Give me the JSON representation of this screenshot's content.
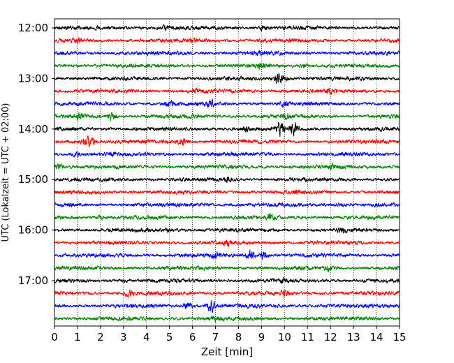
{
  "chart_data": {
    "type": "line",
    "title": "",
    "xlabel": "Zeit  [min]",
    "ylabel": "UTC (Lokalzeit = UTC + 02:00)",
    "xlim": [
      0,
      15
    ],
    "x_ticks": [
      "0",
      "1",
      "2",
      "3",
      "4",
      "5",
      "6",
      "7",
      "8",
      "9",
      "10",
      "11",
      "12",
      "13",
      "14",
      "15"
    ],
    "y_ticks": [
      "12:00",
      "13:00",
      "14:00",
      "15:00",
      "16:00",
      "17:00"
    ],
    "grid": "vertical dotted",
    "trace_colors": [
      "#000000",
      "#ff0000",
      "#0000ff",
      "#008000"
    ],
    "traces": [
      {
        "start": "12:00",
        "events": [
          {
            "x": 4.8,
            "amp": 1.2
          },
          {
            "x": 9.1,
            "amp": 1.0
          }
        ]
      },
      {
        "start": "12:15",
        "events": [
          {
            "x": 1.0,
            "amp": 0.8
          },
          {
            "x": 6.0,
            "amp": 0.8
          }
        ]
      },
      {
        "start": "12:30",
        "events": [
          {
            "x": 8.8,
            "amp": 0.8
          }
        ]
      },
      {
        "start": "12:45",
        "events": [
          {
            "x": 9.0,
            "amp": 1.4
          },
          {
            "x": 10.8,
            "amp": 0.8
          }
        ]
      },
      {
        "start": "13:00",
        "events": [
          {
            "x": 9.7,
            "amp": 2.2
          },
          {
            "x": 10.0,
            "amp": 1.5
          }
        ]
      },
      {
        "start": "13:15",
        "events": [
          {
            "x": 6.2,
            "amp": 0.9
          },
          {
            "x": 12.0,
            "amp": 0.8
          }
        ]
      },
      {
        "start": "13:30",
        "events": [
          {
            "x": 5.0,
            "amp": 1.2
          },
          {
            "x": 6.8,
            "amp": 1.4
          },
          {
            "x": 10.0,
            "amp": 1.1
          }
        ]
      },
      {
        "start": "13:45",
        "events": [
          {
            "x": 1.1,
            "amp": 1.3
          },
          {
            "x": 2.5,
            "amp": 2.0
          },
          {
            "x": 10.0,
            "amp": 1.2
          }
        ]
      },
      {
        "start": "14:00",
        "events": [
          {
            "x": 8.3,
            "amp": 1.2
          },
          {
            "x": 9.8,
            "amp": 3.4
          },
          {
            "x": 10.4,
            "amp": 2.8
          }
        ]
      },
      {
        "start": "14:15",
        "events": [
          {
            "x": 1.3,
            "amp": 2.4
          },
          {
            "x": 1.6,
            "amp": 2.2
          },
          {
            "x": 5.6,
            "amp": 2.0
          }
        ]
      },
      {
        "start": "14:30",
        "events": [
          {
            "x": 0.9,
            "amp": 1.2
          },
          {
            "x": 2.5,
            "amp": 1.0
          }
        ]
      },
      {
        "start": "14:45",
        "events": [
          {
            "x": 0.2,
            "amp": 1.6
          },
          {
            "x": 12.1,
            "amp": 1.1
          }
        ]
      },
      {
        "start": "15:00",
        "events": [
          {
            "x": 7.5,
            "amp": 0.9
          }
        ]
      },
      {
        "start": "15:15",
        "events": [
          {
            "x": 10.5,
            "amp": 0.8
          }
        ]
      },
      {
        "start": "15:30",
        "events": [
          {
            "x": 12.5,
            "amp": 0.9
          }
        ]
      },
      {
        "start": "15:45",
        "events": [
          {
            "x": 2.0,
            "amp": 0.8
          },
          {
            "x": 9.4,
            "amp": 1.4
          }
        ]
      },
      {
        "start": "16:00",
        "events": [
          {
            "x": 5.0,
            "amp": 1.0
          },
          {
            "x": 12.5,
            "amp": 1.2
          }
        ]
      },
      {
        "start": "16:15",
        "events": [
          {
            "x": 7.5,
            "amp": 1.0
          }
        ]
      },
      {
        "start": "16:30",
        "events": [
          {
            "x": 7.0,
            "amp": 1.6
          },
          {
            "x": 8.5,
            "amp": 2.4
          },
          {
            "x": 9.1,
            "amp": 2.2
          }
        ]
      },
      {
        "start": "16:45",
        "events": [
          {
            "x": 11.9,
            "amp": 1.4
          }
        ]
      },
      {
        "start": "17:00",
        "events": [
          {
            "x": 3.0,
            "amp": 0.9
          },
          {
            "x": 10.0,
            "amp": 0.8
          }
        ]
      },
      {
        "start": "17:15",
        "events": [
          {
            "x": 3.2,
            "amp": 1.6
          },
          {
            "x": 10.0,
            "amp": 1.6
          }
        ]
      },
      {
        "start": "17:30",
        "events": [
          {
            "x": 5.8,
            "amp": 1.8
          },
          {
            "x": 6.8,
            "amp": 3.2
          }
        ]
      },
      {
        "start": "17:45",
        "events": [
          {
            "x": 7.0,
            "amp": 0.9
          }
        ]
      }
    ]
  }
}
